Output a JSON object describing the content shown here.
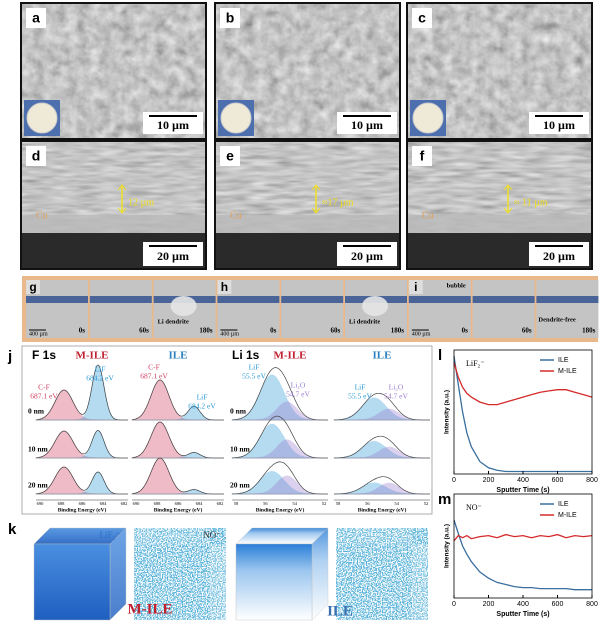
{
  "sem": {
    "panels": [
      {
        "letter": "a",
        "scale": "10 µm"
      },
      {
        "letter": "b",
        "scale": "10 µm"
      },
      {
        "letter": "c",
        "scale": "10 µm"
      },
      {
        "letter": "d",
        "scale": "20 µm",
        "substrate": "Cu",
        "thickness": "12 µm"
      },
      {
        "letter": "e",
        "scale": "20 µm",
        "substrate": "Cu",
        "thickness": "≈17 µm"
      },
      {
        "letter": "f",
        "scale": "20 µm",
        "substrate": "Cu",
        "thickness": "≈ 11 µm"
      }
    ]
  },
  "optical": {
    "panels": [
      {
        "letter": "g",
        "scale": "400 µm",
        "times": [
          "0s",
          "60s",
          "180s"
        ],
        "notes": [
          "Li dendrite"
        ]
      },
      {
        "letter": "h",
        "scale": "400 µm",
        "times": [
          "0s",
          "60s",
          "180s"
        ],
        "notes": [
          "Li dendrite"
        ]
      },
      {
        "letter": "i",
        "scale": "400 µm",
        "times": [
          "0s",
          "60s",
          "180s"
        ],
        "notes": [
          "bubble",
          "Dendrite-free"
        ]
      }
    ]
  },
  "xps": {
    "letter": "j",
    "xlabel": "Binding Energy (eV)",
    "depths": [
      "0 nm",
      "10 nm",
      "20 nm"
    ],
    "groups": [
      {
        "title": "F 1s",
        "columns": [
          {
            "name": "M-ILE",
            "peaks": [
              {
                "species": "C-F",
                "energy": "687.1 eV"
              },
              {
                "species": "LiF",
                "energy": "684.2 eV"
              }
            ]
          },
          {
            "name": "ILE",
            "peaks": [
              {
                "species": "C-F",
                "energy": "687.1 eV"
              },
              {
                "species": "LiF",
                "energy": "684.2 eV"
              }
            ]
          }
        ],
        "ticks": [
          "690",
          "688",
          "686",
          "684",
          "682"
        ]
      },
      {
        "title": "Li 1s",
        "columns": [
          {
            "name": "M-ILE",
            "peaks": [
              {
                "species": "LiF",
                "energy": "55.5 eV"
              },
              {
                "species": "Li₂O",
                "energy": "54.7 eV"
              }
            ]
          },
          {
            "name": "ILE",
            "peaks": [
              {
                "species": "LiF",
                "energy": "55.5 eV"
              },
              {
                "species": "Li₂O",
                "energy": "54.7 eV"
              }
            ]
          }
        ],
        "ticks": [
          "58",
          "56",
          "54",
          "52"
        ]
      }
    ]
  },
  "tof3d": {
    "letter": "k",
    "ions": [
      "LiF₂⁻",
      "NO⁻"
    ],
    "samples": [
      "M-ILE",
      "ILE"
    ]
  },
  "chart_data": [
    {
      "type": "line",
      "letter": "l",
      "annotation": "LiF₂⁻",
      "xlabel": "Sputter Time (s)",
      "ylabel": "Intensity (a.u.)",
      "x": [
        0,
        25,
        50,
        75,
        100,
        150,
        200,
        250,
        300,
        350,
        400,
        450,
        500,
        550,
        600,
        650,
        700,
        750,
        800
      ],
      "series": [
        {
          "name": "ILE",
          "color": "#3a6f9f",
          "values": [
            0.95,
            0.72,
            0.5,
            0.33,
            0.22,
            0.1,
            0.05,
            0.03,
            0.02,
            0.02,
            0.02,
            0.02,
            0.02,
            0.02,
            0.02,
            0.02,
            0.02,
            0.02,
            0.02
          ]
        },
        {
          "name": "M-ILE",
          "color": "#d42a2a",
          "values": [
            0.9,
            0.78,
            0.7,
            0.65,
            0.62,
            0.58,
            0.56,
            0.56,
            0.58,
            0.6,
            0.62,
            0.64,
            0.66,
            0.67,
            0.68,
            0.68,
            0.66,
            0.64,
            0.62
          ]
        }
      ],
      "xlim": [
        0,
        800
      ],
      "xticks": [
        0,
        200,
        400,
        600,
        800
      ],
      "ylim": [
        0,
        1
      ],
      "legend": "upper right"
    },
    {
      "type": "line",
      "letter": "m",
      "annotation": "NO⁻",
      "xlabel": "Sputter Time (s)",
      "ylabel": "Intensity (a.u.)",
      "x": [
        0,
        25,
        50,
        75,
        100,
        150,
        200,
        250,
        300,
        350,
        400,
        450,
        500,
        550,
        600,
        650,
        700,
        750,
        800
      ],
      "series": [
        {
          "name": "ILE",
          "color": "#3a6f9f",
          "values": [
            0.75,
            0.62,
            0.5,
            0.42,
            0.35,
            0.25,
            0.19,
            0.15,
            0.13,
            0.11,
            0.1,
            0.1,
            0.09,
            0.09,
            0.09,
            0.09,
            0.08,
            0.08,
            0.08
          ]
        },
        {
          "name": "M-ILE",
          "color": "#d42a2a",
          "values": [
            0.55,
            0.6,
            0.58,
            0.6,
            0.57,
            0.59,
            0.6,
            0.58,
            0.61,
            0.59,
            0.6,
            0.58,
            0.6,
            0.59,
            0.61,
            0.58,
            0.6,
            0.59,
            0.6
          ]
        }
      ],
      "xlim": [
        0,
        800
      ],
      "xticks": [
        0,
        200,
        400,
        600,
        800
      ],
      "ylim": [
        0,
        1
      ],
      "legend": "upper right"
    }
  ]
}
